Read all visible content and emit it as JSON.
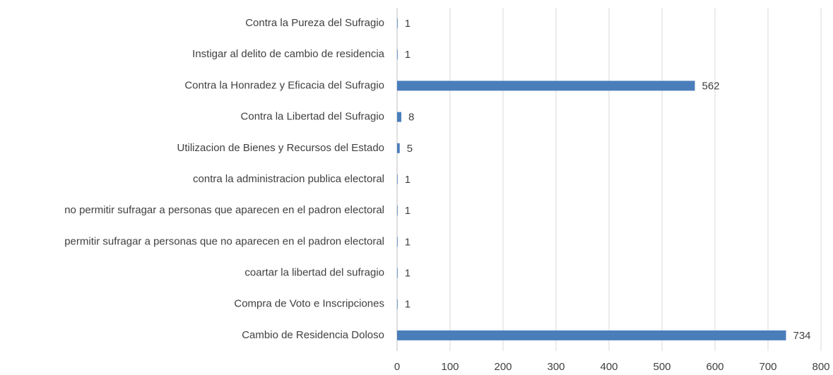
{
  "chart_data": {
    "type": "barh",
    "categories": [
      "Contra la Pureza del Sufragio",
      "Instigar al delito de cambio de residencia",
      "Contra la Honradez y Eficacia del Sufragio",
      "Contra la Libertad del Sufragio",
      "Utilizacion de Bienes y Recursos del Estado",
      "contra la administracion publica electoral",
      "no permitir sufragar a personas que aparecen en el padron electoral",
      "permitir sufragar a personas que no aparecen en el padron electoral",
      "coartar la libertad del sufragio",
      "Compra de Voto e Inscripciones",
      "Cambio de Residencia Doloso"
    ],
    "values": [
      1,
      1,
      562,
      8,
      5,
      1,
      1,
      1,
      1,
      1,
      734
    ],
    "color": "#4a7ebb",
    "xlim": [
      0,
      800
    ],
    "xticks": [
      0,
      100,
      200,
      300,
      400,
      500,
      600,
      700,
      800
    ],
    "grid": true
  }
}
